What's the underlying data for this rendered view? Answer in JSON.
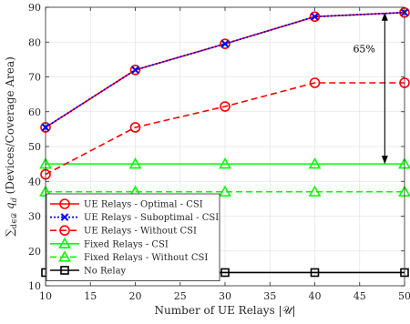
{
  "chart_data": {
    "type": "line",
    "title": "",
    "xlabel": "Number of UE Relays |𝒰|",
    "ylabel": "∑d∈𝒟 qd (Devices/Coverage Area)",
    "ylabel_prefix": "∑",
    "ylabel_sub": "d∈𝒟",
    "ylabel_q": " q",
    "ylabel_qsub": "d",
    "ylabel_rest": " (Devices/Coverage Area)",
    "x": [
      10,
      20,
      30,
      40,
      50
    ],
    "xlim": [
      10,
      50
    ],
    "ylim": [
      10,
      90
    ],
    "xticks": [
      10,
      15,
      20,
      25,
      30,
      35,
      40,
      45,
      50
    ],
    "yticks": [
      10,
      20,
      30,
      40,
      50,
      60,
      70,
      80,
      90
    ],
    "grid": true,
    "legend_position": "bottom-left",
    "series": [
      {
        "name": "UE Relays - Optimal - CSI",
        "values": [
          55.5,
          72,
          79.5,
          87.3,
          88.5
        ],
        "color": "#ff0000",
        "dash": "solid",
        "marker": "circle",
        "width": 1.6
      },
      {
        "name": "UE Relays - Suboptimal - CSI",
        "values": [
          55.5,
          72,
          79.5,
          87.3,
          88.5
        ],
        "color": "#0000ff",
        "dash": "dotted",
        "marker": "x",
        "width": 1.8
      },
      {
        "name": "UE Relays - Without CSI",
        "values": [
          42,
          55.5,
          61.5,
          68.3,
          68.3
        ],
        "color": "#ff0000",
        "dash": "dashed",
        "marker": "circle",
        "width": 1.6
      },
      {
        "name": "Fixed Relays - CSI",
        "values": [
          45,
          45,
          45,
          45,
          45
        ],
        "color": "#00ff00",
        "dash": "solid",
        "marker": "triangle",
        "width": 1.6
      },
      {
        "name": "Fixed Relays - Without CSI",
        "values": [
          37,
          37,
          37,
          37,
          37
        ],
        "color": "#00ff00",
        "dash": "dashed",
        "marker": "triangle",
        "width": 1.6
      },
      {
        "name": "No Relay",
        "values": [
          13.8,
          13.8,
          13.8,
          13.8,
          13.8
        ],
        "color": "#000000",
        "dash": "solid",
        "marker": "square",
        "width": 1.6
      }
    ],
    "annotations": [
      {
        "text": "65%",
        "arrow_x": 47.8,
        "arrow_y_from": 45,
        "arrow_y_to": 88.5,
        "text_x": 45.5,
        "text_y": 77
      }
    ]
  }
}
